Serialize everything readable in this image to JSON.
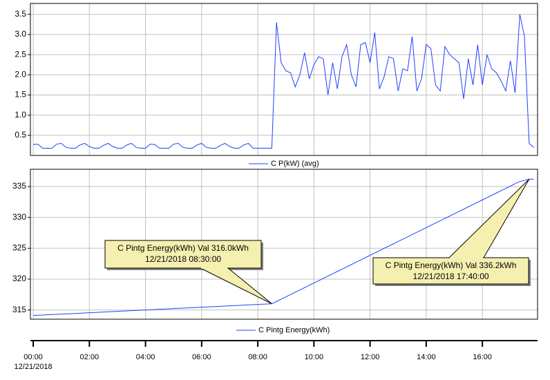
{
  "chart_data": [
    {
      "type": "line",
      "x": [
        0,
        10,
        20,
        30,
        40,
        50,
        60,
        70,
        80,
        90,
        100,
        110,
        120,
        130,
        140,
        150,
        160,
        170,
        180,
        190,
        200,
        210,
        220,
        230,
        240,
        250,
        260,
        270,
        280,
        290,
        300,
        310,
        320,
        330,
        340,
        350,
        360,
        370,
        380,
        390,
        400,
        410,
        420,
        430,
        440,
        450,
        460,
        470,
        480,
        490,
        500,
        510,
        520,
        530,
        540,
        550,
        560,
        570,
        580,
        590,
        600,
        610,
        620,
        630,
        640,
        650,
        660,
        670,
        680,
        690,
        700,
        710,
        720,
        730,
        740,
        750,
        760,
        770,
        780,
        790,
        800,
        810,
        820,
        830,
        840,
        850,
        860,
        870,
        880,
        890,
        900,
        910,
        920,
        930,
        940,
        950,
        960,
        970,
        980,
        990,
        1000,
        1010,
        1020,
        1030,
        1040,
        1050,
        1060,
        1070
      ],
      "series": [
        {
          "name": "C  P(kW) (avg)",
          "color": "#1f3fff",
          "values": [
            0.27,
            0.28,
            0.18,
            0.18,
            0.18,
            0.28,
            0.3,
            0.2,
            0.18,
            0.18,
            0.26,
            0.3,
            0.22,
            0.18,
            0.18,
            0.25,
            0.3,
            0.22,
            0.18,
            0.18,
            0.26,
            0.3,
            0.2,
            0.18,
            0.18,
            0.28,
            0.27,
            0.18,
            0.18,
            0.18,
            0.28,
            0.3,
            0.2,
            0.18,
            0.18,
            0.26,
            0.3,
            0.2,
            0.18,
            0.18,
            0.25,
            0.3,
            0.22,
            0.18,
            0.18,
            0.26,
            0.3,
            0.18,
            0.18,
            0.18,
            0.18,
            0.18,
            3.3,
            2.3,
            2.1,
            2.05,
            1.7,
            2.0,
            2.55,
            1.9,
            2.25,
            2.45,
            2.4,
            1.5,
            2.3,
            1.65,
            2.45,
            2.75,
            2.0,
            1.7,
            2.75,
            2.8,
            2.3,
            3.05,
            1.65,
            1.95,
            2.45,
            2.4,
            1.6,
            2.15,
            2.1,
            2.95,
            1.6,
            1.9,
            2.75,
            2.65,
            1.75,
            1.6,
            2.7,
            2.5,
            2.4,
            2.3,
            1.4,
            2.4,
            1.75,
            2.75,
            1.75,
            2.5,
            2.15,
            2.05,
            1.85,
            1.6,
            2.35,
            1.55,
            3.5,
            2.95,
            0.3,
            0.2
          ]
        }
      ],
      "xlim": [
        -6,
        1078
      ],
      "ylim": [
        0,
        3.77
      ],
      "yticks": [
        {
          "value": 0.5,
          "label": "0.5"
        },
        {
          "value": 1,
          "label": "1.0"
        },
        {
          "value": 1.5,
          "label": "1.5"
        },
        {
          "value": 2,
          "label": "2.0"
        },
        {
          "value": 2.5,
          "label": "2.5"
        },
        {
          "value": 3,
          "label": "3.0"
        },
        {
          "value": 3.5,
          "label": "3.5"
        }
      ],
      "xticks": [
        0,
        120,
        240,
        360,
        480,
        600,
        720,
        840,
        960
      ],
      "grid": true
    },
    {
      "type": "line",
      "x": [
        0,
        10,
        20,
        30,
        40,
        50,
        60,
        70,
        80,
        90,
        100,
        110,
        120,
        130,
        140,
        150,
        160,
        170,
        180,
        190,
        200,
        210,
        220,
        230,
        240,
        250,
        260,
        270,
        280,
        290,
        300,
        310,
        320,
        330,
        340,
        350,
        360,
        370,
        380,
        390,
        400,
        410,
        420,
        430,
        440,
        450,
        460,
        470,
        480,
        490,
        500,
        510,
        520,
        530,
        540,
        550,
        560,
        570,
        580,
        590,
        600,
        610,
        620,
        630,
        640,
        650,
        660,
        670,
        680,
        690,
        700,
        710,
        720,
        730,
        740,
        750,
        760,
        770,
        780,
        790,
        800,
        810,
        820,
        830,
        840,
        850,
        860,
        870,
        880,
        890,
        900,
        910,
        920,
        930,
        940,
        950,
        960,
        970,
        980,
        990,
        1000,
        1010,
        1020,
        1030,
        1040,
        1050,
        1060,
        1070
      ],
      "series": [
        {
          "name": "C  Pintg Energy(kWh)",
          "color": "#1f3fff",
          "values": [
            314.1,
            314.14,
            314.17,
            314.21,
            314.25,
            314.29,
            314.32,
            314.36,
            314.4,
            314.44,
            314.47,
            314.51,
            314.55,
            314.58,
            314.62,
            314.66,
            314.7,
            314.73,
            314.77,
            314.81,
            314.85,
            314.88,
            314.92,
            314.96,
            314.99,
            315.03,
            315.07,
            315.11,
            315.14,
            315.18,
            315.22,
            315.26,
            315.29,
            315.33,
            315.37,
            315.41,
            315.44,
            315.48,
            315.52,
            315.55,
            315.59,
            315.63,
            315.67,
            315.7,
            315.74,
            315.78,
            315.82,
            315.85,
            315.89,
            315.93,
            315.96,
            316.0,
            316.37,
            316.75,
            317.12,
            317.5,
            317.87,
            318.24,
            318.62,
            318.99,
            319.37,
            319.74,
            320.11,
            320.49,
            320.86,
            321.24,
            321.61,
            321.98,
            322.36,
            322.73,
            323.11,
            323.48,
            323.85,
            324.23,
            324.6,
            324.98,
            325.35,
            325.72,
            326.1,
            326.47,
            326.85,
            327.22,
            327.59,
            327.97,
            328.34,
            328.72,
            329.09,
            329.46,
            329.84,
            330.21,
            330.59,
            330.96,
            331.33,
            331.71,
            332.08,
            332.46,
            332.83,
            333.2,
            333.58,
            333.95,
            334.33,
            334.7,
            335.07,
            335.45,
            335.82,
            336.0,
            336.2,
            336.2
          ]
        }
      ],
      "xlim": [
        -6,
        1078
      ],
      "ylim": [
        313.5,
        337.8
      ],
      "yticks": [
        315,
        320,
        325,
        330,
        335
      ],
      "xticks": [
        0,
        120,
        240,
        360,
        480,
        600,
        720,
        840,
        960
      ],
      "grid": true,
      "annotations": [
        {
          "text": "C  Pintg Energy(kWh) Val 316.0kWh",
          "time": "12/21/2018 08:30:00",
          "x": 510,
          "y": 316.0
        },
        {
          "text": "C  Pintg Energy(kWh) Val 336.2kWh",
          "time": "12/21/2018 17:40:00",
          "x": 1060,
          "y": 336.2
        }
      ]
    },
    {
      "type": "time-axis",
      "xlim": [
        -6,
        1078
      ],
      "xticks": [
        {
          "value": 0,
          "label": "00:00"
        },
        {
          "value": 120,
          "label": "02:00"
        },
        {
          "value": 240,
          "label": "04:00"
        },
        {
          "value": 360,
          "label": "06:00"
        },
        {
          "value": 480,
          "label": "08:00"
        },
        {
          "value": 600,
          "label": "10:00"
        },
        {
          "value": 720,
          "label": "12:00"
        },
        {
          "value": 840,
          "label": "14:00"
        },
        {
          "value": 960,
          "label": "16:00"
        }
      ],
      "date_label": "12/21/2018"
    }
  ]
}
